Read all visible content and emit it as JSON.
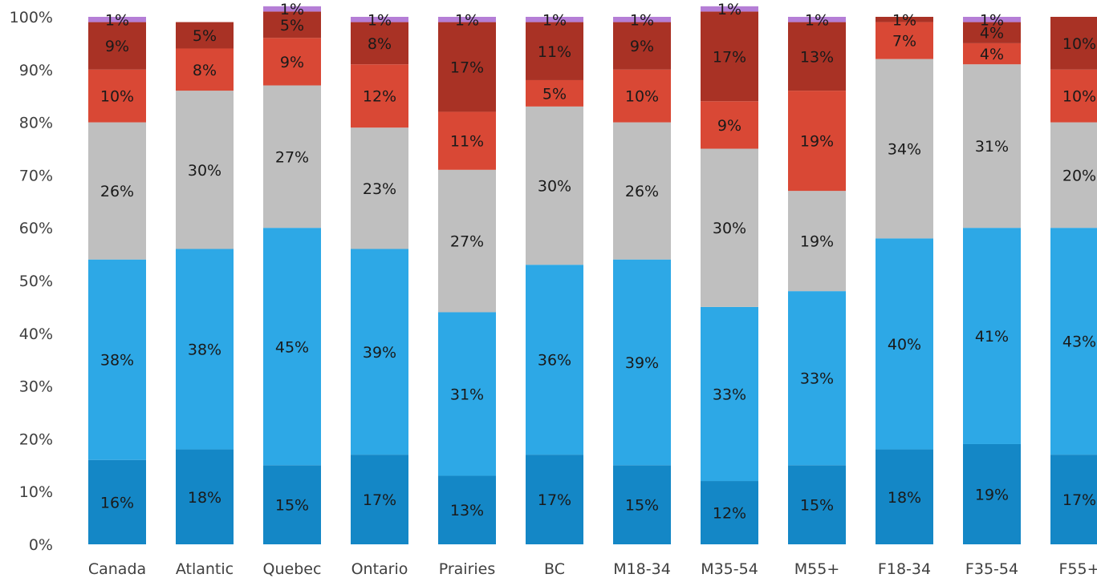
{
  "chart_data": {
    "type": "bar",
    "stacked": true,
    "percent": true,
    "grid": false,
    "legend": "none",
    "ylim": [
      0,
      100
    ],
    "y_ticks": [
      "0%",
      "10%",
      "20%",
      "30%",
      "40%",
      "50%",
      "60%",
      "70%",
      "80%",
      "90%",
      "100%"
    ],
    "categories": [
      "Canada",
      "Atlantic",
      "Quebec",
      "Ontario",
      "Prairies",
      "BC",
      "M18-34",
      "M35-54",
      "M55+",
      "F18-34",
      "F35-54",
      "F55+"
    ],
    "series": [
      {
        "color": "#1487c6",
        "values": [
          16,
          18,
          15,
          17,
          13,
          17,
          15,
          12,
          15,
          18,
          19,
          17
        ]
      },
      {
        "color": "#2da8e6",
        "values": [
          38,
          38,
          45,
          39,
          31,
          36,
          39,
          33,
          33,
          40,
          41,
          43
        ]
      },
      {
        "color": "#bfbfbf",
        "values": [
          26,
          30,
          27,
          23,
          27,
          30,
          26,
          30,
          19,
          34,
          31,
          20
        ]
      },
      {
        "color": "#d94835",
        "values": [
          10,
          8,
          9,
          12,
          11,
          5,
          10,
          9,
          19,
          7,
          4,
          10
        ]
      },
      {
        "color": "#a93225",
        "values": [
          9,
          5,
          5,
          8,
          17,
          11,
          9,
          17,
          13,
          1,
          4,
          10
        ]
      },
      {
        "color": "#b57ed6",
        "values": [
          1,
          0,
          1,
          1,
          1,
          1,
          1,
          1,
          1,
          0,
          1,
          0
        ]
      }
    ]
  }
}
